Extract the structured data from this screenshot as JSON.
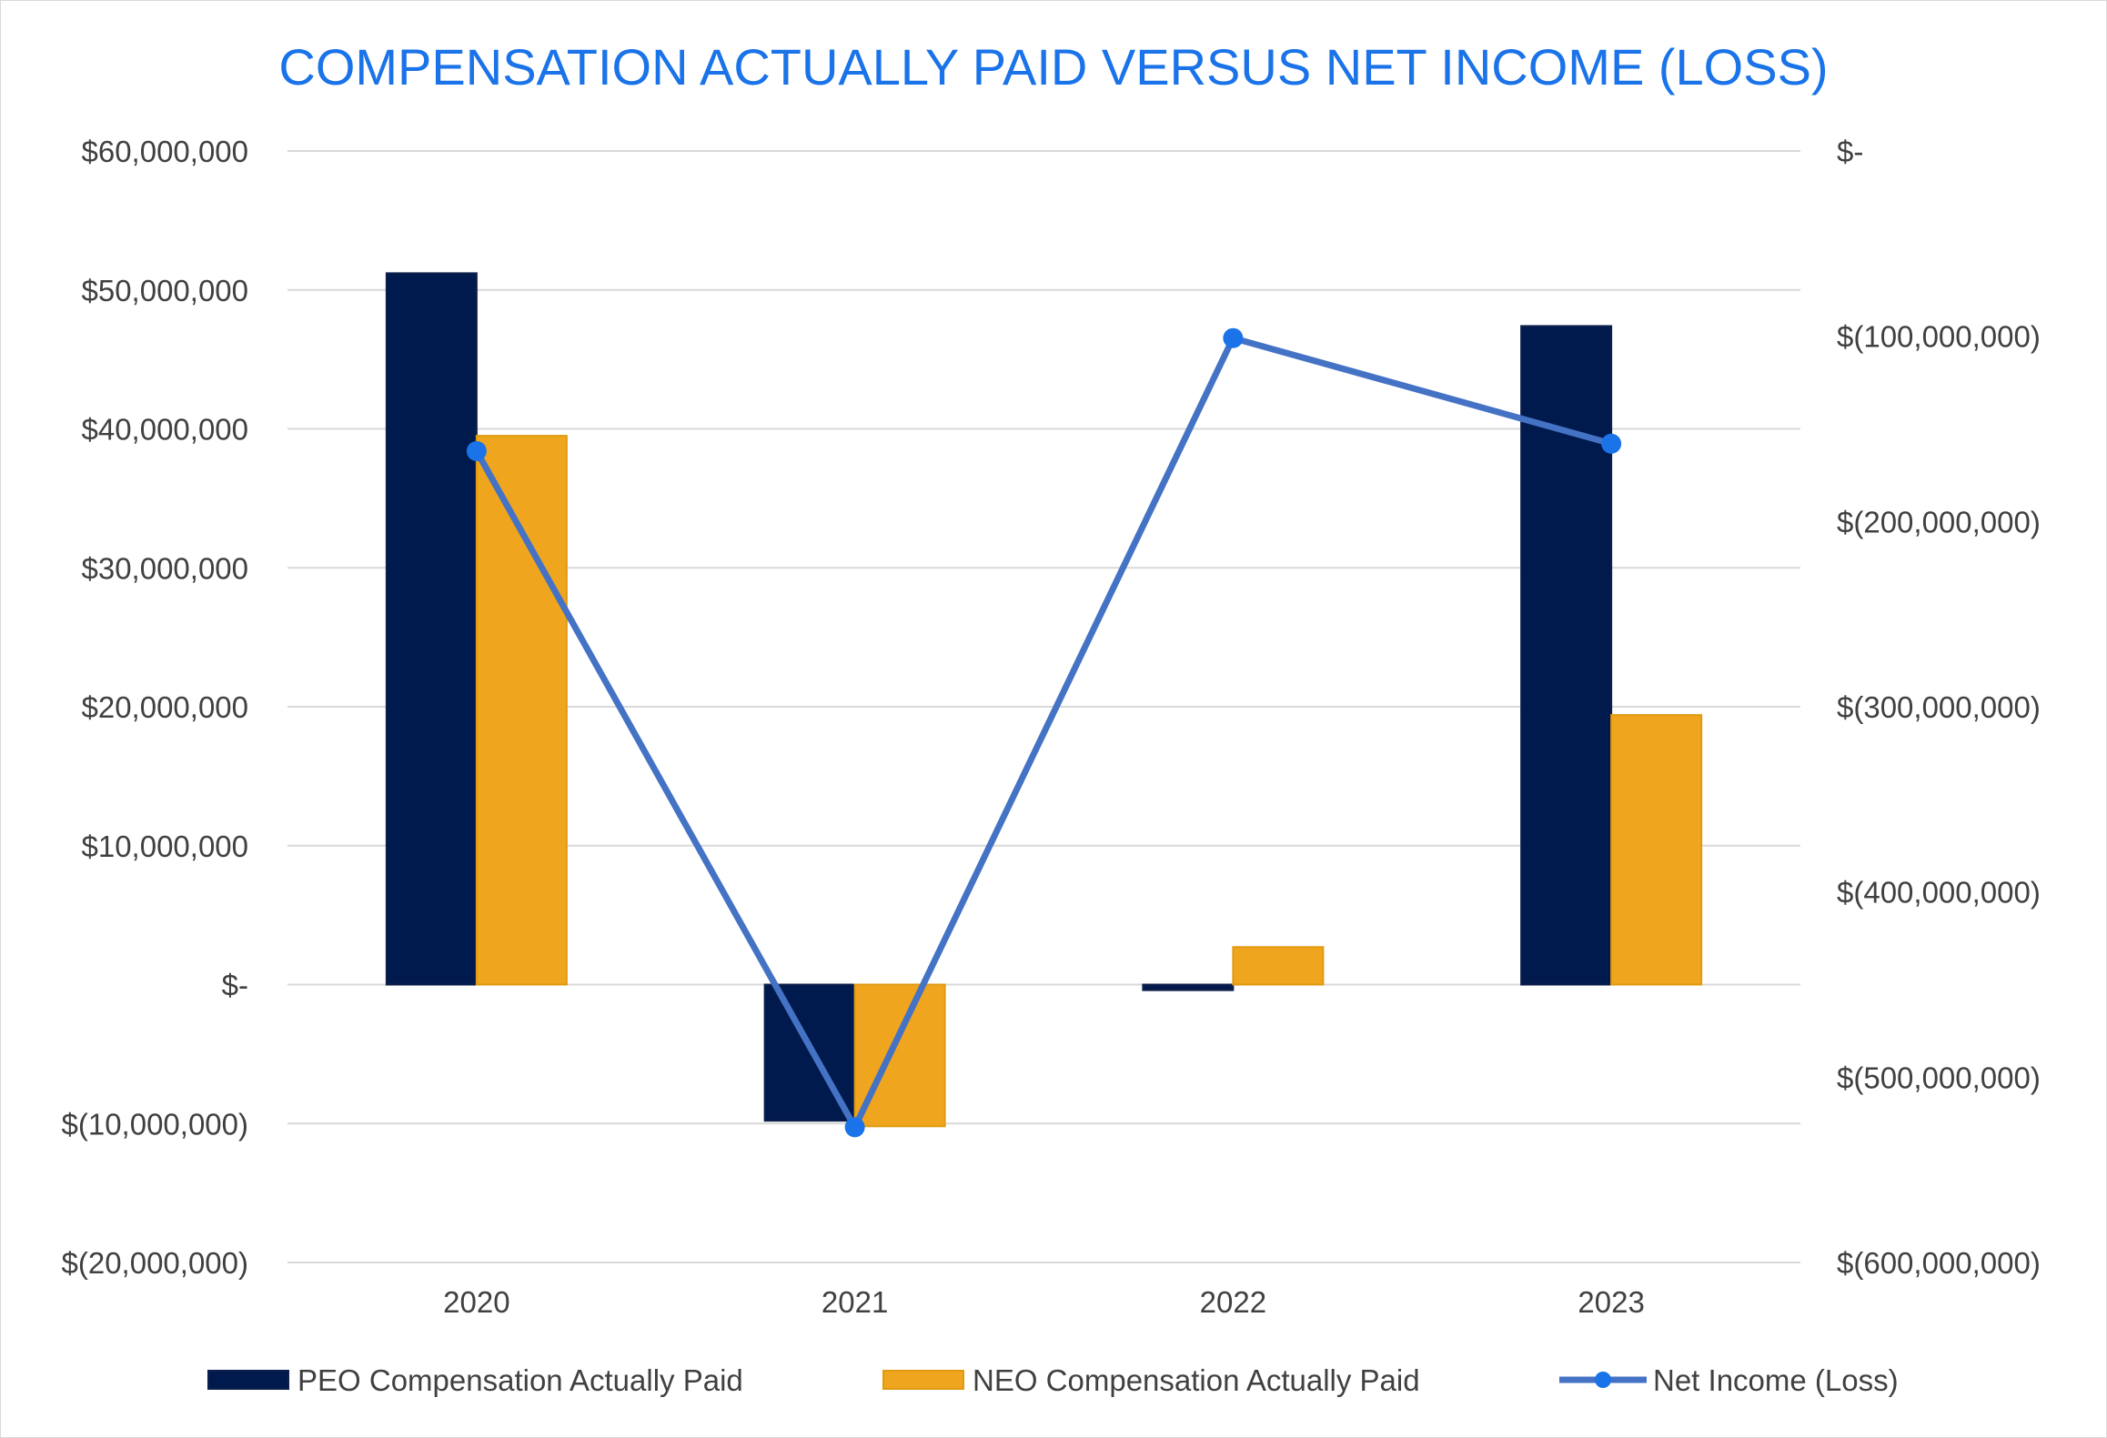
{
  "chart_data": {
    "type": "bar",
    "title": "COMPENSATION ACTUALLY PAID VERSUS NET INCOME (LOSS)",
    "categories": [
      "2020",
      "2021",
      "2022",
      "2023"
    ],
    "series": [
      {
        "name": "PEO Compensation Actually Paid",
        "type": "bar",
        "axis": "left",
        "color": "#001a4d",
        "values": [
          51200000,
          -9800000,
          -400000,
          47400000
        ]
      },
      {
        "name": "NEO Compensation Actually Paid",
        "type": "bar",
        "axis": "left",
        "color": "#f0a51f",
        "values": [
          39500000,
          -10200000,
          2700000,
          19400000
        ]
      },
      {
        "name": "Net Income (Loss)",
        "type": "line",
        "axis": "right",
        "color": "#4472c4",
        "marker_color": "#1a73e8",
        "values": [
          -162000000,
          -527000000,
          -101000000,
          -158000000
        ]
      }
    ],
    "left_axis": {
      "range": [
        -20000000,
        60000000
      ],
      "tick_labels": [
        "$(20,000,000)",
        "$(10,000,000)",
        "$-",
        "$10,000,000",
        "$20,000,000",
        "$30,000,000",
        "$40,000,000",
        "$50,000,000",
        "$60,000,000"
      ]
    },
    "right_axis": {
      "range": [
        -600000000,
        0
      ],
      "tick_labels": [
        "$(600,000,000)",
        "$(500,000,000)",
        "$(400,000,000)",
        "$(300,000,000)",
        "$(200,000,000)",
        "$(100,000,000)",
        "$-"
      ]
    },
    "grid": true,
    "legend_position": "bottom"
  }
}
